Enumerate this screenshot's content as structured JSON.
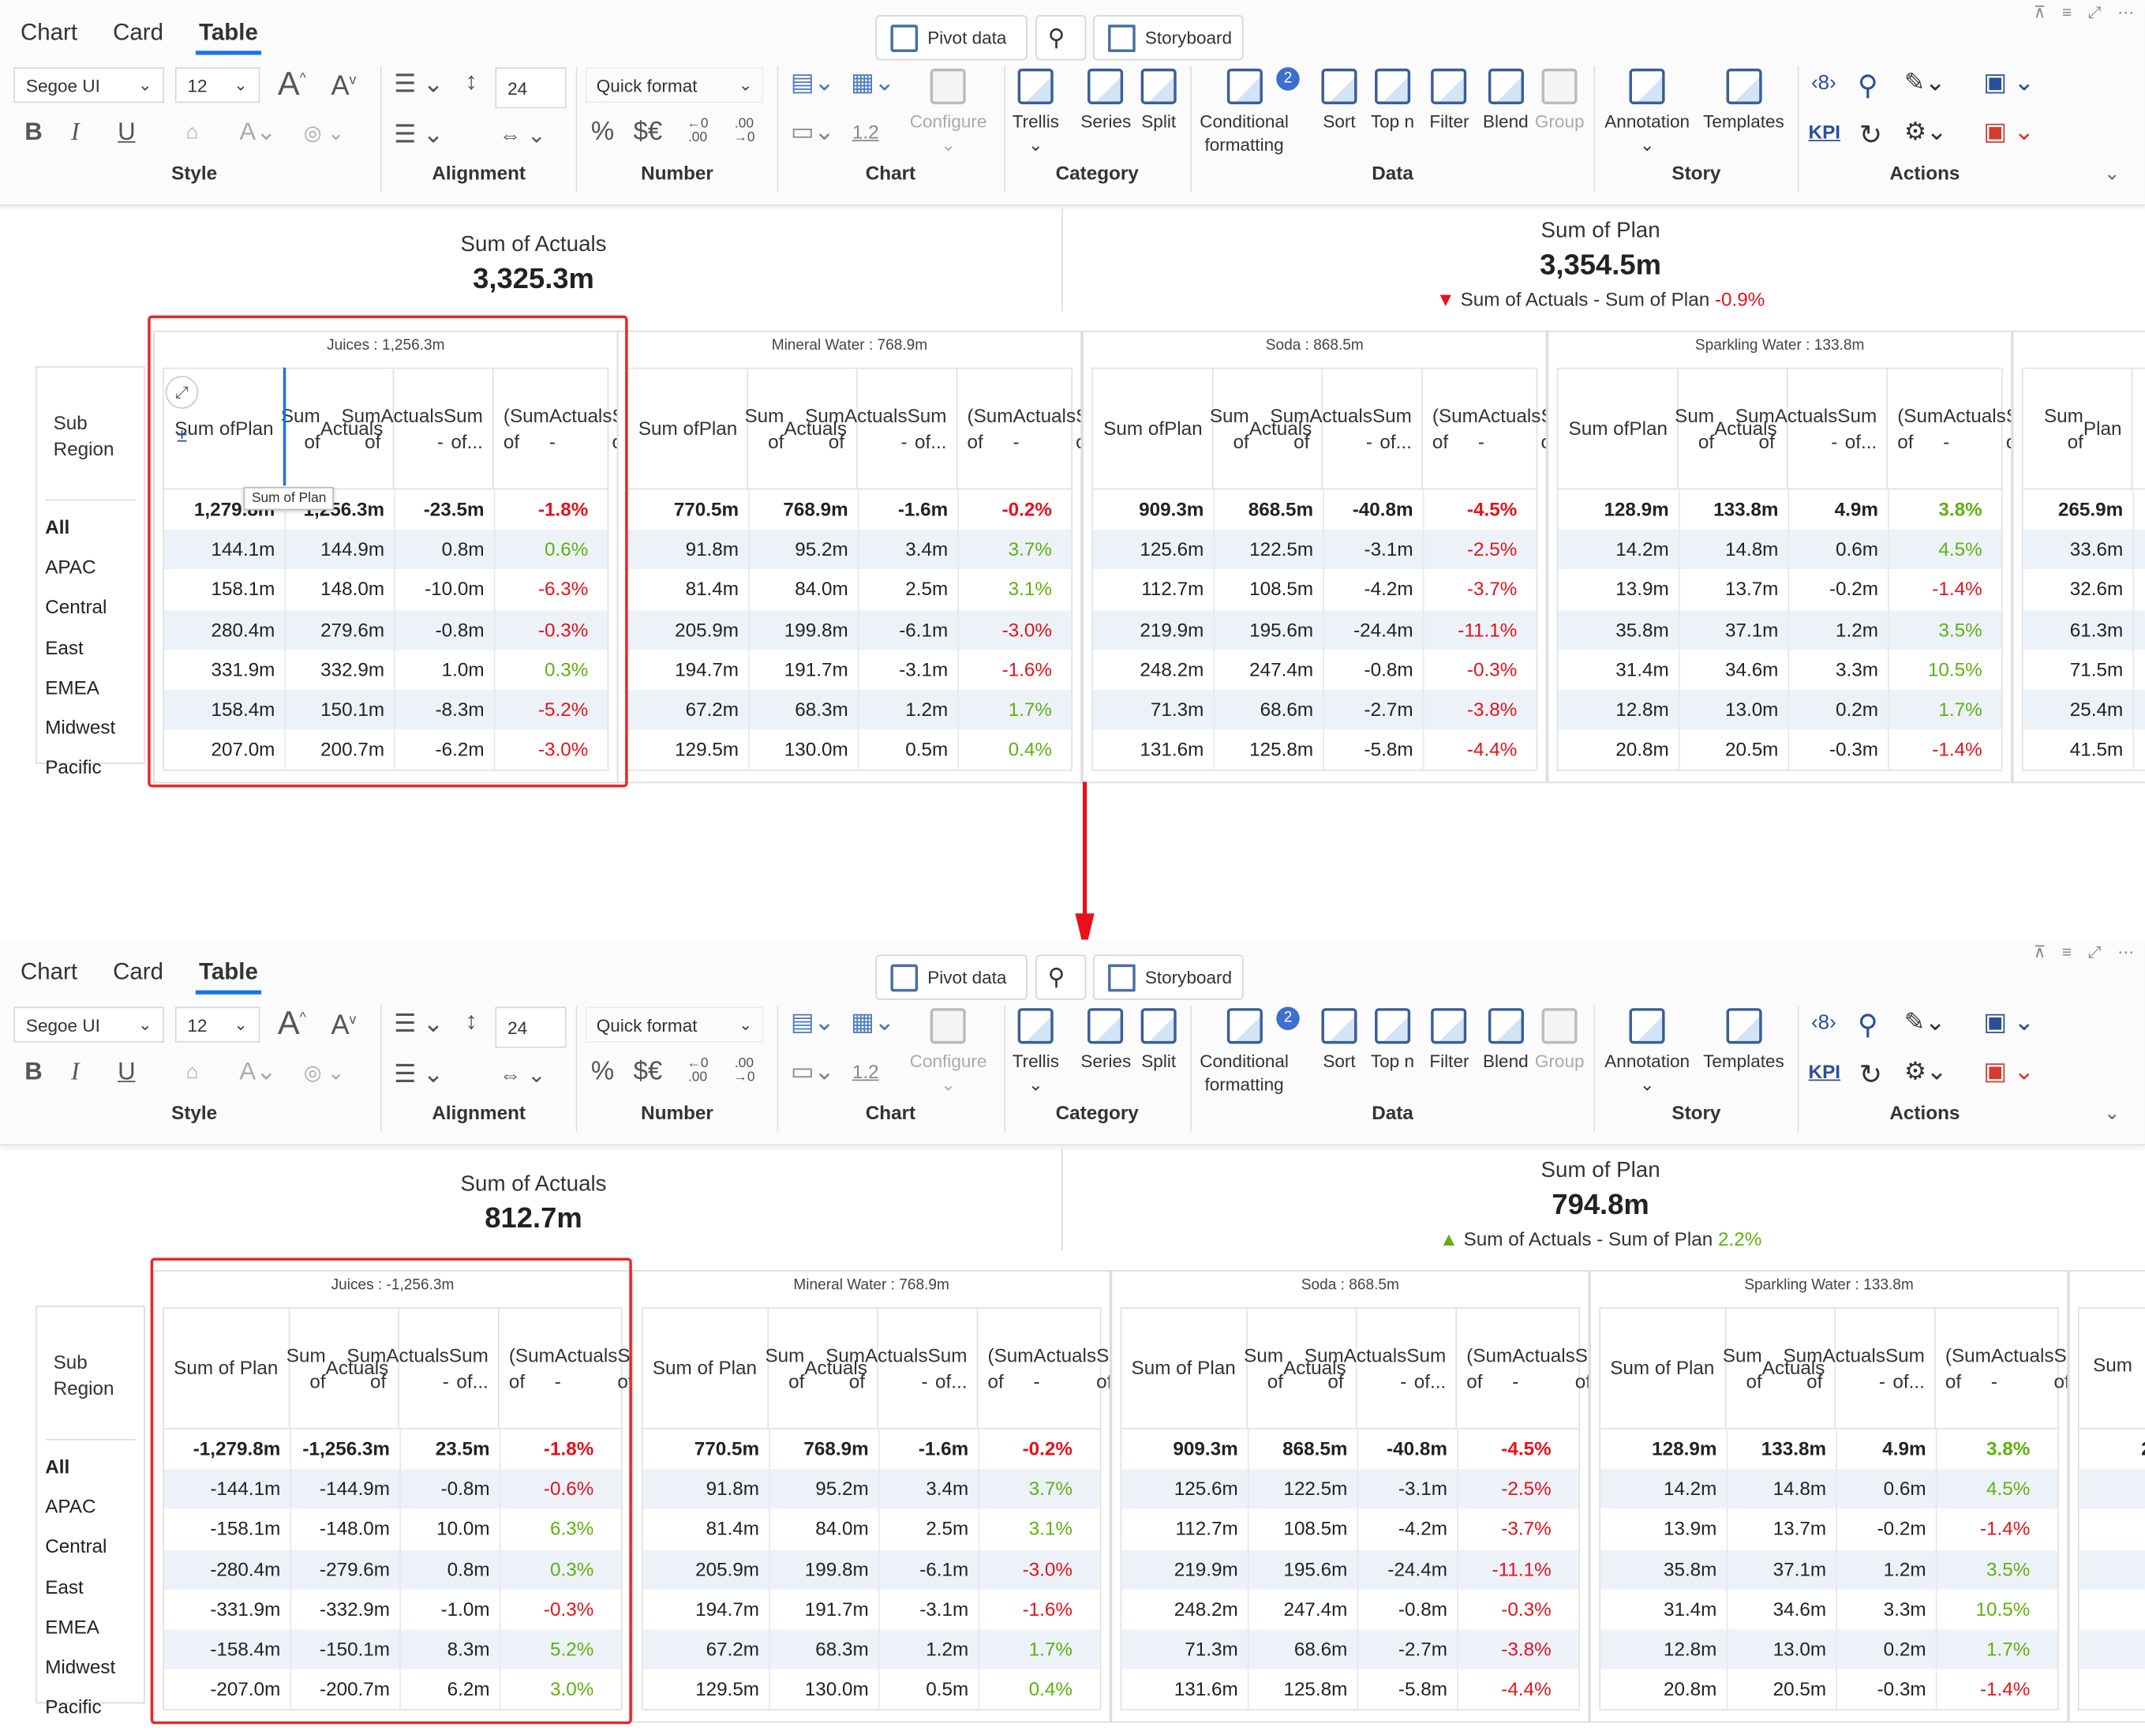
{
  "tabs": [
    "Chart",
    "Card",
    "Table"
  ],
  "top_buttons": {
    "pivot": "Pivot data",
    "storyboard": "Storyboard"
  },
  "font": {
    "family": "Segoe UI",
    "size": "12",
    "line": "24"
  },
  "number": {
    "quick_format": "Quick format",
    "percent": "%",
    "currency": "$€",
    "dec_up": "←0 .00",
    "dec_down": ".00 →0"
  },
  "chart_group": {
    "configure": "Configure",
    "scale": "1.2"
  },
  "buttons": {
    "trellis": "Trellis",
    "series": "Series",
    "split": "Split",
    "conditional_1": "Conditional",
    "conditional_2": "formatting",
    "conditional_badge": "2",
    "sort": "Sort",
    "topn": "Top n",
    "filter": "Filter",
    "blend": "Blend",
    "group": "Group",
    "annotation": "Annotation",
    "templates": "Templates",
    "kpi": "KPI"
  },
  "groups": {
    "style": "Style",
    "alignment": "Alignment",
    "number": "Number",
    "chart": "Chart",
    "category": "Category",
    "data": "Data",
    "story": "Story",
    "actions": "Actions"
  },
  "row_header": {
    "l1": "Sub",
    "l2": "Region"
  },
  "rows": [
    "All",
    "APAC",
    "Central",
    "East",
    "EMEA",
    "Midwest",
    "Pacific"
  ],
  "tooltip": "Sum of Plan",
  "col_headers": {
    "plan": [
      "Sum of",
      "Plan"
    ],
    "plan_one": "Sum of Plan",
    "actuals": [
      "Sum of",
      "Actuals"
    ],
    "diff": [
      "Sum of",
      "Actuals -",
      "Sum of..."
    ],
    "pct": [
      "(Sum of",
      "Actuals -",
      "Sum of..."
    ]
  },
  "before": {
    "kpi_left": {
      "title": "Sum of Actuals",
      "value": "3,325.3m"
    },
    "kpi_right": {
      "title": "Sum of Plan",
      "value": "3,354.5m",
      "delta_label": "Sum of Actuals - Sum of Plan",
      "delta": "-0.9%",
      "arrow": "▼",
      "color": "#e8101a"
    },
    "groups": [
      {
        "title": "Juices :  1,256.3m",
        "rows": [
          [
            "1,279.8m",
            "1,256.3m",
            "-23.5m",
            "-1.8%"
          ],
          [
            "144.1m",
            "144.9m",
            "0.8m",
            "0.6%"
          ],
          [
            "158.1m",
            "148.0m",
            "-10.0m",
            "-6.3%"
          ],
          [
            "280.4m",
            "279.6m",
            "-0.8m",
            "-0.3%"
          ],
          [
            "331.9m",
            "332.9m",
            "1.0m",
            "0.3%"
          ],
          [
            "158.4m",
            "150.1m",
            "-8.3m",
            "-5.2%"
          ],
          [
            "207.0m",
            "200.7m",
            "-6.2m",
            "-3.0%"
          ]
        ]
      },
      {
        "title": "Mineral Water :  768.9m",
        "rows": [
          [
            "770.5m",
            "768.9m",
            "-1.6m",
            "-0.2%"
          ],
          [
            "91.8m",
            "95.2m",
            "3.4m",
            "3.7%"
          ],
          [
            "81.4m",
            "84.0m",
            "2.5m",
            "3.1%"
          ],
          [
            "205.9m",
            "199.8m",
            "-6.1m",
            "-3.0%"
          ],
          [
            "194.7m",
            "191.7m",
            "-3.1m",
            "-1.6%"
          ],
          [
            "67.2m",
            "68.3m",
            "1.2m",
            "1.7%"
          ],
          [
            "129.5m",
            "130.0m",
            "0.5m",
            "0.4%"
          ]
        ]
      },
      {
        "title": "Soda :  868.5m",
        "rows": [
          [
            "909.3m",
            "868.5m",
            "-40.8m",
            "-4.5%"
          ],
          [
            "125.6m",
            "122.5m",
            "-3.1m",
            "-2.5%"
          ],
          [
            "112.7m",
            "108.5m",
            "-4.2m",
            "-3.7%"
          ],
          [
            "219.9m",
            "195.6m",
            "-24.4m",
            "-11.1%"
          ],
          [
            "248.2m",
            "247.4m",
            "-0.8m",
            "-0.3%"
          ],
          [
            "71.3m",
            "68.6m",
            "-2.7m",
            "-3.8%"
          ],
          [
            "131.6m",
            "125.8m",
            "-5.8m",
            "-4.4%"
          ]
        ]
      },
      {
        "title": "Sparkling Water :  133.8m",
        "rows": [
          [
            "128.9m",
            "133.8m",
            "4.9m",
            "3.8%"
          ],
          [
            "14.2m",
            "14.8m",
            "0.6m",
            "4.5%"
          ],
          [
            "13.9m",
            "13.7m",
            "-0.2m",
            "-1.4%"
          ],
          [
            "35.8m",
            "37.1m",
            "1.2m",
            "3.5%"
          ],
          [
            "31.4m",
            "34.6m",
            "3.3m",
            "10.5%"
          ],
          [
            "12.8m",
            "13.0m",
            "0.2m",
            "1.7%"
          ],
          [
            "20.8m",
            "20.5m",
            "-0.3m",
            "-1.4%"
          ]
        ]
      },
      {
        "title": "",
        "rows": [
          [
            "265.9m"
          ],
          [
            "33.6m"
          ],
          [
            "32.6m"
          ],
          [
            "61.3m"
          ],
          [
            "71.5m"
          ],
          [
            "25.4m"
          ],
          [
            "41.5m"
          ]
        ]
      }
    ]
  },
  "after": {
    "kpi_left": {
      "title": "Sum of Actuals",
      "value": "812.7m"
    },
    "kpi_right": {
      "title": "Sum of Plan",
      "value": "794.8m",
      "delta_label": "Sum of Actuals - Sum of Plan",
      "delta": "2.2%",
      "arrow": "▲",
      "color": "#5eb10d"
    },
    "groups": [
      {
        "title": "Juices :  -1,256.3m",
        "rows": [
          [
            "-1,279.8m",
            "-1,256.3m",
            "23.5m",
            "-1.8%"
          ],
          [
            "-144.1m",
            "-144.9m",
            "-0.8m",
            "-0.6%"
          ],
          [
            "-158.1m",
            "-148.0m",
            "10.0m",
            "6.3%"
          ],
          [
            "-280.4m",
            "-279.6m",
            "0.8m",
            "0.3%"
          ],
          [
            "-331.9m",
            "-332.9m",
            "-1.0m",
            "-0.3%"
          ],
          [
            "-158.4m",
            "-150.1m",
            "8.3m",
            "5.2%"
          ],
          [
            "-207.0m",
            "-200.7m",
            "6.2m",
            "3.0%"
          ]
        ]
      },
      {
        "title": "Mineral Water :  768.9m",
        "rows": [
          [
            "770.5m",
            "768.9m",
            "-1.6m",
            "-0.2%"
          ],
          [
            "91.8m",
            "95.2m",
            "3.4m",
            "3.7%"
          ],
          [
            "81.4m",
            "84.0m",
            "2.5m",
            "3.1%"
          ],
          [
            "205.9m",
            "199.8m",
            "-6.1m",
            "-3.0%"
          ],
          [
            "194.7m",
            "191.7m",
            "-3.1m",
            "-1.6%"
          ],
          [
            "67.2m",
            "68.3m",
            "1.2m",
            "1.7%"
          ],
          [
            "129.5m",
            "130.0m",
            "0.5m",
            "0.4%"
          ]
        ]
      },
      {
        "title": "Soda :  868.5m",
        "rows": [
          [
            "909.3m",
            "868.5m",
            "-40.8m",
            "-4.5%"
          ],
          [
            "125.6m",
            "122.5m",
            "-3.1m",
            "-2.5%"
          ],
          [
            "112.7m",
            "108.5m",
            "-4.2m",
            "-3.7%"
          ],
          [
            "219.9m",
            "195.6m",
            "-24.4m",
            "-11.1%"
          ],
          [
            "248.2m",
            "247.4m",
            "-0.8m",
            "-0.3%"
          ],
          [
            "71.3m",
            "68.6m",
            "-2.7m",
            "-3.8%"
          ],
          [
            "131.6m",
            "125.8m",
            "-5.8m",
            "-4.4%"
          ]
        ]
      },
      {
        "title": "Sparkling Water :  133.8m",
        "rows": [
          [
            "128.9m",
            "133.8m",
            "4.9m",
            "3.8%"
          ],
          [
            "14.2m",
            "14.8m",
            "0.6m",
            "4.5%"
          ],
          [
            "13.9m",
            "13.7m",
            "-0.2m",
            "-1.4%"
          ],
          [
            "35.8m",
            "37.1m",
            "1.2m",
            "3.5%"
          ],
          [
            "31.4m",
            "34.6m",
            "3.3m",
            "10.5%"
          ],
          [
            "12.8m",
            "13.0m",
            "0.2m",
            "1.7%"
          ],
          [
            "20.8m",
            "20.5m",
            "-0.3m",
            "-1.4%"
          ]
        ]
      },
      {
        "title": "",
        "rows": [
          [
            "2"
          ],
          [
            ""
          ],
          [
            ""
          ],
          [
            ""
          ],
          [
            ""
          ],
          [
            ""
          ],
          [
            ""
          ]
        ],
        "partial_header": "Sum"
      }
    ]
  },
  "colors": {
    "negative": "#e8101a",
    "positive": "#5eb10d",
    "highlight": "#e8262a",
    "accent": "#1a73e8",
    "band": "#edf2f9"
  }
}
